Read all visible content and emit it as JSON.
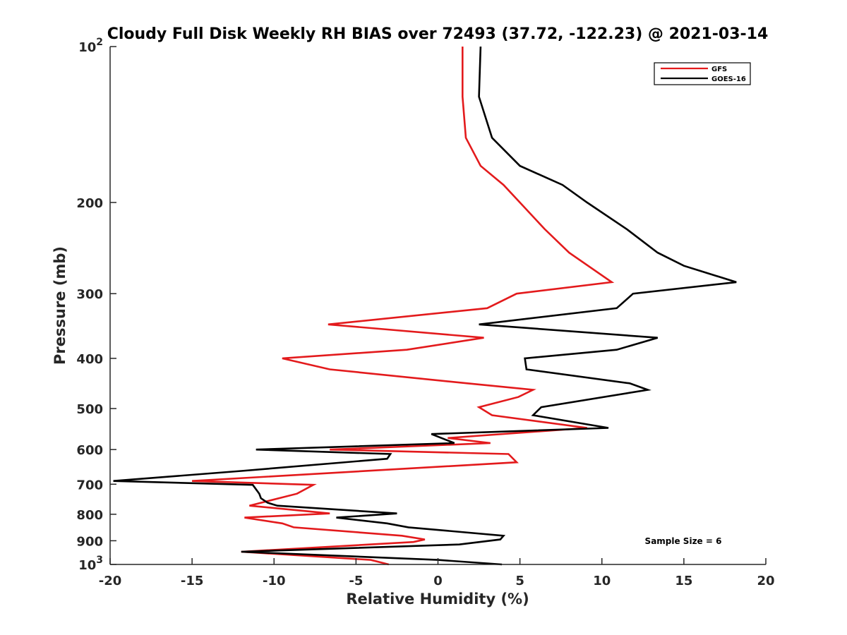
{
  "chart_data": {
    "type": "line",
    "title": "Cloudy Full Disk Weekly RH BIAS over 72493 (37.72, -122.23) @ 2021-03-14",
    "xlabel": "Relative Humidity (%)",
    "ylabel": "Pressure (mb)",
    "xlim": [
      -20,
      20
    ],
    "ylim": [
      100,
      1000
    ],
    "yscale": "log",
    "y_reversed": true,
    "x_ticks": [
      -20,
      -15,
      -10,
      -5,
      0,
      5,
      10,
      15,
      20
    ],
    "x_tick_labels": [
      "-20",
      "-15",
      "-10",
      "-5",
      "0",
      "5",
      "10",
      "15",
      "20"
    ],
    "y_ticks": [
      100,
      200,
      300,
      400,
      500,
      600,
      700,
      800,
      900,
      1000
    ],
    "y_tick_labels": [
      {
        "base": "10",
        "exp": "2"
      },
      {
        "base": "200",
        "exp": ""
      },
      {
        "base": "300",
        "exp": ""
      },
      {
        "base": "400",
        "exp": ""
      },
      {
        "base": "500",
        "exp": ""
      },
      {
        "base": "600",
        "exp": ""
      },
      {
        "base": "700",
        "exp": ""
      },
      {
        "base": "800",
        "exp": ""
      },
      {
        "base": "900",
        "exp": ""
      },
      {
        "base": "10",
        "exp": "3"
      }
    ],
    "legend_position": "top-right",
    "grid": false,
    "annotation": "Sample Size = 6",
    "series": [
      {
        "name": "GFS",
        "color": "#e31a1c",
        "points": [
          {
            "x": 1.5,
            "y": 100
          },
          {
            "x": 1.5,
            "y": 125
          },
          {
            "x": 1.7,
            "y": 150
          },
          {
            "x": 2.6,
            "y": 170
          },
          {
            "x": 4.0,
            "y": 185
          },
          {
            "x": 5.0,
            "y": 200
          },
          {
            "x": 6.5,
            "y": 225
          },
          {
            "x": 8.0,
            "y": 250
          },
          {
            "x": 10.6,
            "y": 285
          },
          {
            "x": 4.8,
            "y": 300
          },
          {
            "x": 3.0,
            "y": 320
          },
          {
            "x": -6.7,
            "y": 344
          },
          {
            "x": 2.8,
            "y": 365
          },
          {
            "x": -1.9,
            "y": 385
          },
          {
            "x": -9.5,
            "y": 400
          },
          {
            "x": -6.6,
            "y": 420
          },
          {
            "x": 1.8,
            "y": 447
          },
          {
            "x": 5.8,
            "y": 460
          },
          {
            "x": 4.9,
            "y": 475
          },
          {
            "x": 2.5,
            "y": 497
          },
          {
            "x": 3.3,
            "y": 515
          },
          {
            "x": 9.1,
            "y": 545
          },
          {
            "x": 0.6,
            "y": 570
          },
          {
            "x": 3.2,
            "y": 583
          },
          {
            "x": -6.6,
            "y": 600
          },
          {
            "x": 4.3,
            "y": 612
          },
          {
            "x": 4.8,
            "y": 635
          },
          {
            "x": -15.0,
            "y": 690
          },
          {
            "x": -7.6,
            "y": 702
          },
          {
            "x": -8.6,
            "y": 730
          },
          {
            "x": -11.5,
            "y": 770
          },
          {
            "x": -6.6,
            "y": 797
          },
          {
            "x": -11.8,
            "y": 812
          },
          {
            "x": -9.5,
            "y": 833
          },
          {
            "x": -8.8,
            "y": 848
          },
          {
            "x": -2.2,
            "y": 880
          },
          {
            "x": -0.8,
            "y": 895
          },
          {
            "x": -1.5,
            "y": 905
          },
          {
            "x": -12.0,
            "y": 945
          },
          {
            "x": -4.1,
            "y": 980
          },
          {
            "x": -3.0,
            "y": 1000
          }
        ]
      },
      {
        "name": "GOES-16",
        "color": "#000000",
        "points": [
          {
            "x": 2.6,
            "y": 100
          },
          {
            "x": 2.5,
            "y": 125
          },
          {
            "x": 3.3,
            "y": 150
          },
          {
            "x": 5.0,
            "y": 170
          },
          {
            "x": 7.6,
            "y": 185
          },
          {
            "x": 9.1,
            "y": 200
          },
          {
            "x": 11.5,
            "y": 225
          },
          {
            "x": 13.4,
            "y": 250
          },
          {
            "x": 15.0,
            "y": 265
          },
          {
            "x": 18.2,
            "y": 285
          },
          {
            "x": 11.9,
            "y": 300
          },
          {
            "x": 10.9,
            "y": 320
          },
          {
            "x": 2.5,
            "y": 344
          },
          {
            "x": 13.4,
            "y": 365
          },
          {
            "x": 10.9,
            "y": 385
          },
          {
            "x": 5.3,
            "y": 400
          },
          {
            "x": 5.4,
            "y": 420
          },
          {
            "x": 11.7,
            "y": 447
          },
          {
            "x": 12.8,
            "y": 460
          },
          {
            "x": 6.3,
            "y": 497
          },
          {
            "x": 5.8,
            "y": 515
          },
          {
            "x": 10.4,
            "y": 545
          },
          {
            "x": -0.4,
            "y": 560
          },
          {
            "x": 1.0,
            "y": 583
          },
          {
            "x": -11.1,
            "y": 600
          },
          {
            "x": -2.9,
            "y": 612
          },
          {
            "x": -3.1,
            "y": 625
          },
          {
            "x": -12.0,
            "y": 660
          },
          {
            "x": -19.8,
            "y": 690
          },
          {
            "x": -11.3,
            "y": 702
          },
          {
            "x": -10.9,
            "y": 730
          },
          {
            "x": -10.8,
            "y": 745
          },
          {
            "x": -10.4,
            "y": 760
          },
          {
            "x": -9.8,
            "y": 770
          },
          {
            "x": -2.5,
            "y": 797
          },
          {
            "x": -6.2,
            "y": 812
          },
          {
            "x": -3.1,
            "y": 833
          },
          {
            "x": -1.8,
            "y": 848
          },
          {
            "x": 4.0,
            "y": 880
          },
          {
            "x": 3.8,
            "y": 895
          },
          {
            "x": 1.3,
            "y": 915
          },
          {
            "x": -12.0,
            "y": 945
          },
          {
            "x": 0.0,
            "y": 980
          },
          {
            "x": 3.9,
            "y": 1000
          }
        ]
      }
    ]
  }
}
